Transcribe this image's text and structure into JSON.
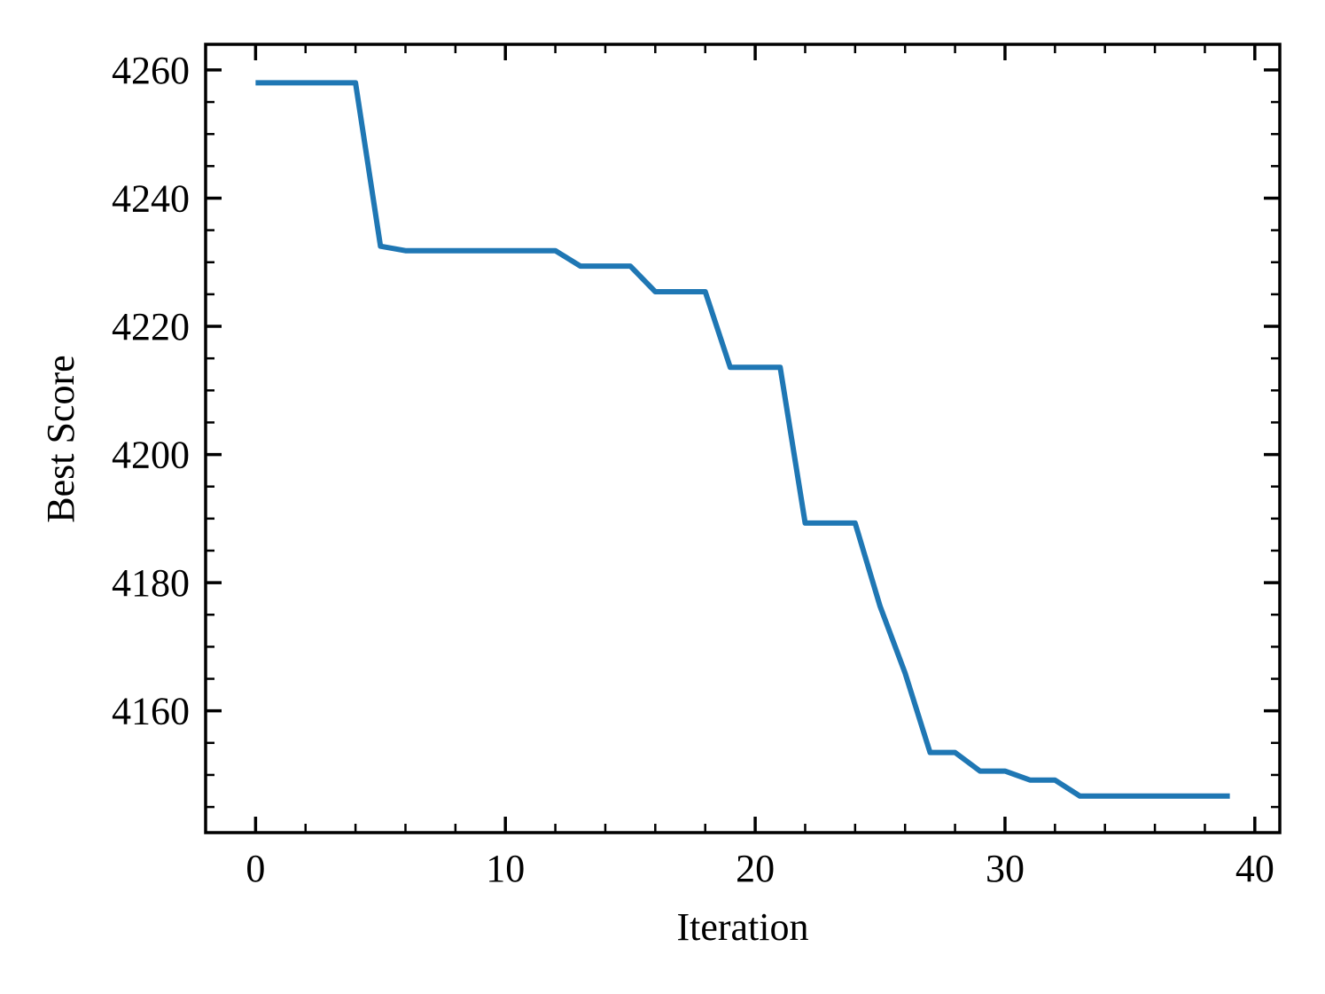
{
  "chart_data": {
    "type": "line",
    "title": "",
    "xlabel": "Iteration",
    "ylabel": "Best Score",
    "xlim": [
      -2,
      41
    ],
    "ylim": [
      4141,
      4264
    ],
    "x_major_ticks": [
      0,
      10,
      20,
      30,
      40
    ],
    "x_minor_step": 2,
    "y_major_ticks": [
      4160,
      4180,
      4200,
      4220,
      4240,
      4260
    ],
    "y_minor_step": 5,
    "grid": false,
    "legend": "none",
    "series_color": "#1f77b4",
    "x": [
      0,
      1,
      2,
      3,
      4,
      5,
      6,
      7,
      8,
      9,
      10,
      11,
      12,
      13,
      14,
      15,
      16,
      17,
      18,
      19,
      20,
      21,
      22,
      23,
      24,
      25,
      26,
      27,
      28,
      29,
      30,
      31,
      32,
      33,
      34,
      35,
      36,
      37,
      38,
      39
    ],
    "y": [
      4258,
      4258,
      4258,
      4258,
      4258,
      4232.5,
      4231.8,
      4231.8,
      4231.8,
      4231.8,
      4231.8,
      4231.8,
      4231.8,
      4229.4,
      4229.4,
      4229.4,
      4225.4,
      4225.4,
      4225.4,
      4213.6,
      4213.6,
      4213.6,
      4189.3,
      4189.3,
      4189.3,
      4176.3,
      4165.9,
      4153.5,
      4153.5,
      4150.6,
      4150.6,
      4149.2,
      4149.2,
      4146.7,
      4146.7,
      4146.7,
      4146.7,
      4146.7,
      4146.7,
      4146.7
    ]
  }
}
